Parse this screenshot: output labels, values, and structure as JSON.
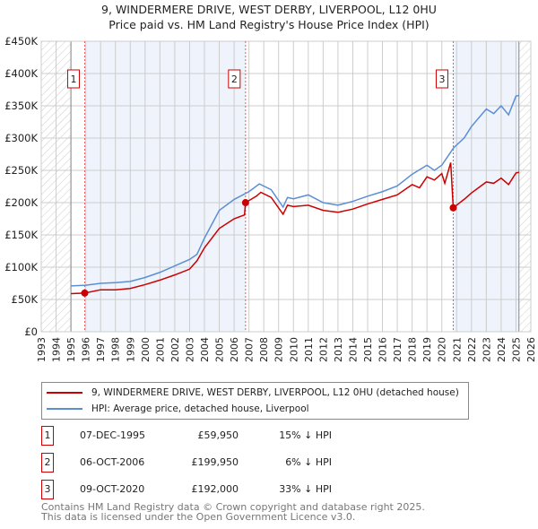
{
  "colors": {
    "property": "#cc0000",
    "hpi": "#5b8fd4",
    "shade": "#eef3fc"
  },
  "chart_data": {
    "type": "line",
    "title": "9, WINDERMERE DRIVE, WEST DERBY, LIVERPOOL, L12 0HU",
    "subtitle": "Price paid vs. HM Land Registry's House Price Index (HPI)",
    "xlim": [
      1993,
      2026
    ],
    "ylim": [
      0,
      450000
    ],
    "x_ticks": [
      "1993",
      "1994",
      "1995",
      "1996",
      "1997",
      "1998",
      "1999",
      "2000",
      "2001",
      "2002",
      "2003",
      "2004",
      "2005",
      "2006",
      "2007",
      "2008",
      "2009",
      "2010",
      "2011",
      "2012",
      "2013",
      "2014",
      "2015",
      "2016",
      "2017",
      "2018",
      "2019",
      "2020",
      "2021",
      "2022",
      "2023",
      "2024",
      "2025",
      "2026"
    ],
    "y_ticks": [
      {
        "v": 0,
        "l": "£0"
      },
      {
        "v": 50000,
        "l": "£50K"
      },
      {
        "v": 100000,
        "l": "£100K"
      },
      {
        "v": 150000,
        "l": "£150K"
      },
      {
        "v": 200000,
        "l": "£200K"
      },
      {
        "v": 250000,
        "l": "£250K"
      },
      {
        "v": 300000,
        "l": "£300K"
      },
      {
        "v": 350000,
        "l": "£350K"
      },
      {
        "v": 400000,
        "l": "£400K"
      },
      {
        "v": 450000,
        "l": "£450K"
      }
    ],
    "series": [
      {
        "name": "9, WINDERMERE DRIVE, WEST DERBY, LIVERPOOL, L12 0HU (detached house)",
        "color": "#cc0000",
        "x": [
          1995,
          1995.93,
          1997,
          1998,
          1999,
          2000,
          2001,
          2002,
          2003,
          2003.5,
          2004,
          2005,
          2006,
          2006.7,
          2006.77,
          2007.5,
          2007.8,
          2008.5,
          2009.3,
          2009.6,
          2010,
          2011,
          2012,
          2013,
          2014,
          2015,
          2016,
          2017,
          2018,
          2018.5,
          2019,
          2019.5,
          2020,
          2020.2,
          2020.6,
          2020.77,
          2021.5,
          2022,
          2023,
          2023.5,
          2024,
          2024.5,
          2025,
          2025.2
        ],
        "y": [
          59000,
          59950,
          65000,
          65000,
          67000,
          73000,
          80000,
          88000,
          97000,
          110000,
          130000,
          160000,
          175000,
          181000,
          199950,
          210000,
          216000,
          208000,
          182000,
          196000,
          194000,
          196000,
          188000,
          185000,
          190000,
          198000,
          205000,
          212000,
          228000,
          223000,
          240000,
          235000,
          245000,
          230000,
          262000,
          192000,
          205000,
          215000,
          232000,
          230000,
          238000,
          228000,
          246000,
          247000
        ]
      },
      {
        "name": "HPI: Average price, detached house, Liverpool",
        "color": "#5b8fd4",
        "x": [
          1995,
          1996,
          1997,
          1998,
          1999,
          2000,
          2001,
          2002,
          2003,
          2003.5,
          2004,
          2005,
          2006,
          2007,
          2007.7,
          2008.5,
          2009.3,
          2009.6,
          2010,
          2011,
          2012,
          2013,
          2014,
          2015,
          2016,
          2017,
          2018,
          2019,
          2019.5,
          2020,
          2020.8,
          2021.5,
          2022,
          2023,
          2023.5,
          2024,
          2024.5,
          2025,
          2025.2
        ],
        "y": [
          71000,
          72000,
          75000,
          76000,
          78000,
          84000,
          92000,
          102000,
          112000,
          120000,
          145000,
          188000,
          205000,
          217000,
          229000,
          220000,
          193000,
          208000,
          206000,
          212000,
          200000,
          196000,
          202000,
          210000,
          217000,
          226000,
          244000,
          258000,
          250000,
          258000,
          285000,
          300000,
          318000,
          345000,
          338000,
          350000,
          336000,
          365000,
          366000
        ]
      }
    ],
    "sales": [
      {
        "label": "1",
        "x": 1995.93,
        "y": 59950
      },
      {
        "label": "2",
        "x": 2006.77,
        "y": 199950
      },
      {
        "label": "3",
        "x": 2020.77,
        "y": 192000
      }
    ]
  },
  "legend": {
    "property": "9, WINDERMERE DRIVE, WEST DERBY, LIVERPOOL, L12 0HU (detached house)",
    "hpi": "HPI: Average price, detached house, Liverpool"
  },
  "transactions": [
    {
      "num": "1",
      "date": "07-DEC-1995",
      "price": "£59,950",
      "hpi": "15% ↓ HPI"
    },
    {
      "num": "2",
      "date": "06-OCT-2006",
      "price": "£199,950",
      "hpi": "6% ↓ HPI"
    },
    {
      "num": "3",
      "date": "09-OCT-2020",
      "price": "£192,000",
      "hpi": "33% ↓ HPI"
    }
  ],
  "footer": {
    "line1": "Contains HM Land Registry data © Crown copyright and database right 2025.",
    "line2": "This data is licensed under the Open Government Licence v3.0."
  }
}
